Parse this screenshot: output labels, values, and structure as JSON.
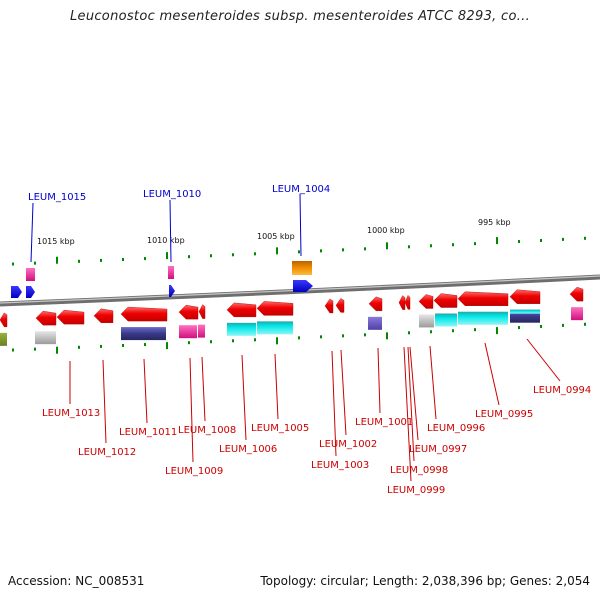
{
  "title": "Leuconostoc mesenteroides subsp. mesenteroides ATCC 8293, co...",
  "footer": {
    "accession": "Accession: NC_008531",
    "topology": "Topology: circular; Length: 2,038,396 bp; Genes: 2,054"
  },
  "scale_labels": [
    "1015 kbp",
    "1010 kbp",
    "1005 kbp",
    "1000 kbp",
    "995 kbp"
  ],
  "forward_labels": [
    "LEUM_1015",
    "LEUM_1010",
    "LEUM_1004"
  ],
  "reverse_labels": [
    "LEUM_1013",
    "LEUM_1012",
    "LEUM_1011",
    "LEUM_1009",
    "LEUM_1008",
    "LEUM_1006",
    "LEUM_1005",
    "LEUM_1003",
    "LEUM_1002",
    "LEUM_1001",
    "LEUM_0999",
    "LEUM_0998",
    "LEUM_0997",
    "LEUM_0996",
    "LEUM_0995",
    "LEUM_0994"
  ],
  "colors": {
    "backbone": "#888888",
    "gene": "#ee0000",
    "forward_label": "#0000cc",
    "reverse_label": "#cc0000",
    "tick": "#008800",
    "cyan": "#00dddd",
    "purple": "#3a3a88",
    "magenta": "#e0208f",
    "gray": "#bbbbbb",
    "orange": "#e88a00",
    "blue": "#0000ee"
  }
}
